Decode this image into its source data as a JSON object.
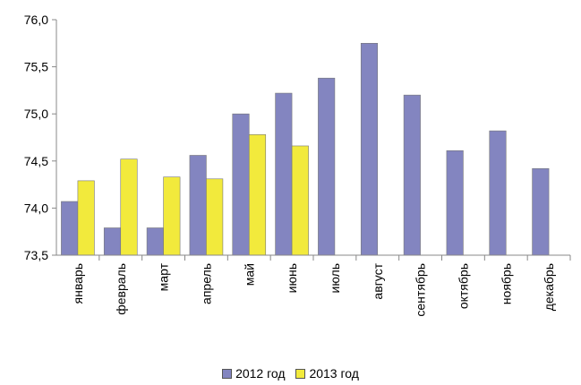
{
  "chart_data": {
    "type": "bar",
    "categories": [
      "январь",
      "февраль",
      "март",
      "апрель",
      "май",
      "июнь",
      "июль",
      "август",
      "сентябрь",
      "октябрь",
      "ноябрь",
      "декабрь"
    ],
    "series": [
      {
        "name": "2012 год",
        "color": "#8385C0",
        "values": [
          74.07,
          73.79,
          73.79,
          74.56,
          75.0,
          75.22,
          75.38,
          75.75,
          75.2,
          74.61,
          74.82,
          74.42
        ]
      },
      {
        "name": "2013 год",
        "color": "#F2EA3C",
        "values": [
          74.29,
          74.52,
          74.33,
          74.31,
          74.78,
          74.66,
          null,
          null,
          null,
          null,
          null,
          null
        ]
      }
    ],
    "ylim": [
      73.5,
      76.0
    ],
    "yticks": [
      "73,5",
      "74,0",
      "74,5",
      "75,0",
      "75,5",
      "76,0"
    ],
    "grid": false,
    "legend_position": "bottom",
    "title": "",
    "xlabel": "",
    "ylabel": ""
  }
}
